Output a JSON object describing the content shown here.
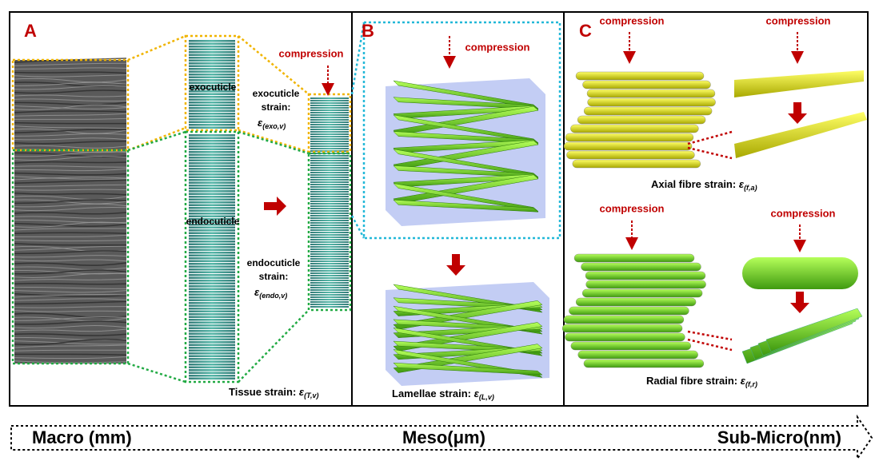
{
  "panels": [
    {
      "label": "A",
      "texts": {
        "exocuticle": "exocuticle",
        "endocuticle": "endocuticle",
        "compression": "compression",
        "exo_strain_1": "exocuticle",
        "exo_strain_2": "strain:",
        "endo_strain_1": "endocuticle",
        "endo_strain_2": "strain:"
      },
      "exo_symbol": {
        "symbol": "ε",
        "subscript": "(exo,v)"
      },
      "endo_symbol": {
        "symbol": "ε",
        "subscript": "(endo,v)"
      },
      "caption": {
        "text": "Tissue strain:",
        "symbol": "ε",
        "subscript": "(T,v)"
      }
    },
    {
      "label": "B",
      "compression": "compression",
      "caption": {
        "text": "Lamellae strain:",
        "symbol": "ε",
        "subscript": "(L,v)"
      }
    },
    {
      "label": "C",
      "compression": [
        "compression",
        "compression",
        "compression",
        "compression"
      ],
      "axial_caption": {
        "text": "Axial fibre strain:",
        "symbol": "ε",
        "subscript": "(f,a)"
      },
      "radial_caption": {
        "text": "Radial fibre strain:",
        "symbol": "ε",
        "subscript": "(f,r)"
      }
    }
  ],
  "scale_bar": {
    "left": "Macro (mm)",
    "middle": "Meso(μm)",
    "right": "Sub-Micro(nm)"
  }
}
